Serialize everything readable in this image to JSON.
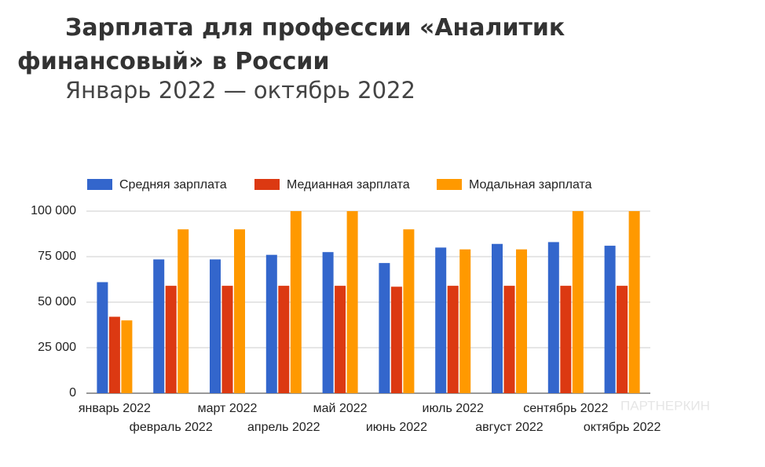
{
  "chart_data": {
    "type": "bar",
    "title": "Зарплата для профессии «Аналитик финансовый» в России",
    "subtitle": "Январь 2022 — октябрь 2022",
    "watermark": "ПАРТНЕРКИН",
    "categories": [
      "январь 2022",
      "февраль 2022",
      "март 2022",
      "апрель 2022",
      "май 2022",
      "июнь 2022",
      "июль 2022",
      "август 2022",
      "сентябрь 2022",
      "октябрь 2022"
    ],
    "series": [
      {
        "name": "Средняя зарплата",
        "color": "#3366cc",
        "values": [
          61000,
          73500,
          73500,
          76000,
          77500,
          71500,
          80000,
          82000,
          83000,
          81000
        ]
      },
      {
        "name": "Медианная зарплата",
        "color": "#dc3912",
        "values": [
          42000,
          59000,
          59000,
          59000,
          59000,
          58500,
          59000,
          59000,
          59000,
          59000
        ]
      },
      {
        "name": "Модальная зарплата",
        "color": "#ff9900",
        "values": [
          40000,
          90000,
          90000,
          100000,
          100000,
          90000,
          79000,
          79000,
          100000,
          100000
        ]
      }
    ],
    "ylim": [
      0,
      100000
    ],
    "yticks": [
      {
        "value": 0,
        "label": "0"
      },
      {
        "value": 25000,
        "label": "25 000"
      },
      {
        "value": 50000,
        "label": "50 000"
      },
      {
        "value": 75000,
        "label": "75 000"
      },
      {
        "value": 100000,
        "label": "100 000"
      }
    ],
    "grid": true,
    "legend": "top"
  }
}
